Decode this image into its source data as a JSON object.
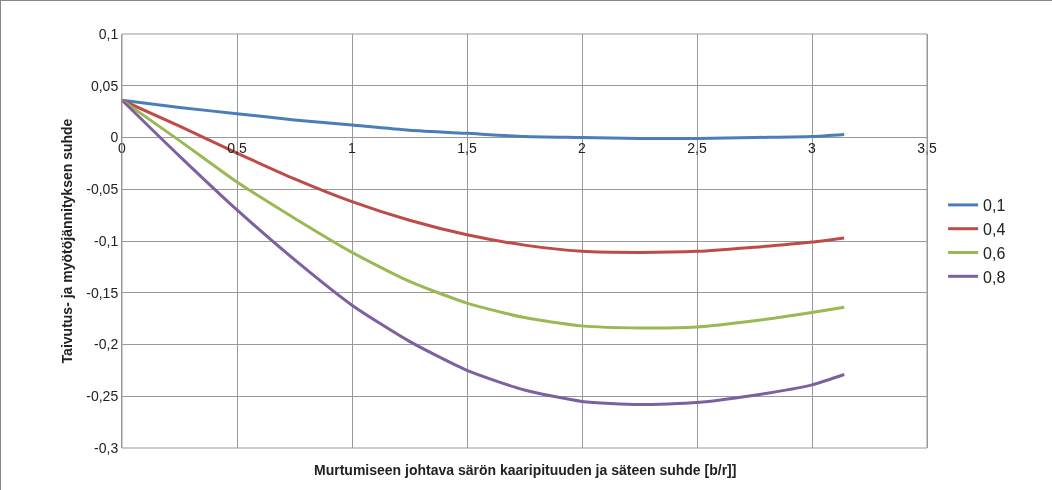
{
  "chart_data": {
    "type": "line",
    "xlabel": "Murtumiseen johtava särön kaaripituuden ja säteen suhde [b/r]]",
    "ylabel": "Taivutus- ja myötöjännityksen suhde",
    "x": [
      0,
      0.25,
      0.5,
      0.75,
      1,
      1.25,
      1.5,
      1.75,
      2,
      2.25,
      2.5,
      2.75,
      3,
      3.14
    ],
    "series": [
      {
        "name": "0,1",
        "color": "#4a7ebb",
        "values": [
          0.036,
          0.029,
          0.023,
          0.017,
          0.012,
          0.007,
          0.004,
          0.001,
          0,
          -0.001,
          -0.001,
          0,
          0.001,
          0.003
        ]
      },
      {
        "name": "0,4",
        "color": "#be4b48",
        "values": [
          0.036,
          0.011,
          -0.015,
          -0.04,
          -0.062,
          -0.08,
          -0.094,
          -0.104,
          -0.11,
          -0.111,
          -0.11,
          -0.106,
          -0.101,
          -0.097
        ]
      },
      {
        "name": "0,6",
        "color": "#98b954",
        "values": [
          0.036,
          -0.003,
          -0.043,
          -0.078,
          -0.111,
          -0.139,
          -0.16,
          -0.174,
          -0.182,
          -0.184,
          -0.183,
          -0.177,
          -0.169,
          -0.164
        ]
      },
      {
        "name": "0,8",
        "color": "#7d60a0",
        "values": [
          0.036,
          -0.018,
          -0.07,
          -0.118,
          -0.162,
          -0.197,
          -0.225,
          -0.244,
          -0.255,
          -0.258,
          -0.256,
          -0.249,
          -0.239,
          -0.229
        ]
      }
    ],
    "xlim": [
      0,
      3.5
    ],
    "xticks": [
      {
        "value": 0,
        "label": "0"
      },
      {
        "value": 0.5,
        "label": "0,5"
      },
      {
        "value": 1,
        "label": "1"
      },
      {
        "value": 1.5,
        "label": "1,5"
      },
      {
        "value": 2,
        "label": "2"
      },
      {
        "value": 2.5,
        "label": "2,5"
      },
      {
        "value": 3,
        "label": "3"
      },
      {
        "value": 3.5,
        "label": "3,5"
      }
    ],
    "ylim": [
      -0.3,
      0.1
    ],
    "yticks": [
      {
        "value": -0.3,
        "label": "-0,3"
      },
      {
        "value": -0.25,
        "label": "-0,25"
      },
      {
        "value": -0.2,
        "label": "-0,2"
      },
      {
        "value": -0.15,
        "label": "-0,15"
      },
      {
        "value": -0.1,
        "label": "-0,1"
      },
      {
        "value": -0.05,
        "label": "-0,05"
      },
      {
        "value": 0,
        "label": "0"
      },
      {
        "value": 0.05,
        "label": "0,05"
      },
      {
        "value": 0.1,
        "label": "0,1"
      }
    ],
    "grid": true,
    "legend": "right",
    "marker": "none",
    "line_style": "solid"
  }
}
